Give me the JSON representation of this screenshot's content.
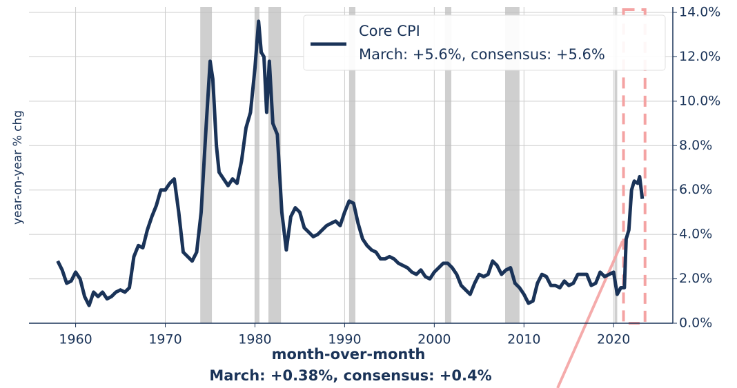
{
  "chart_data": {
    "type": "line",
    "ylabel": "year-on-year % chg",
    "xlabel": "month-over-month",
    "annotation": "March:  +0.38%, consensus: +0.4%",
    "legend_note": "March:  +5.6%, consensus: +5.6%",
    "grid": true,
    "legend": "upper right",
    "xlim": [
      1954.8,
      2026.6
    ],
    "ylim": [
      0,
      14
    ],
    "xticks": [
      1960,
      1970,
      1980,
      1990,
      2000,
      2010,
      2020
    ],
    "yticks": [
      {
        "value": 0,
        "label": "0.0%"
      },
      {
        "value": 2,
        "label": "2.0%"
      },
      {
        "value": 4,
        "label": "4.0%"
      },
      {
        "value": 6,
        "label": "6.0%"
      },
      {
        "value": 8,
        "label": "8.0%"
      },
      {
        "value": 10,
        "label": "10.0%"
      },
      {
        "value": 12,
        "label": "12.0%"
      },
      {
        "value": 14,
        "label": "14.0%"
      }
    ],
    "recession_color": "#bbbbbb",
    "recessions": [
      [
        1973.9,
        1975.2
      ],
      [
        1980.0,
        1980.5
      ],
      [
        1981.5,
        1982.9
      ],
      [
        1990.5,
        1991.2
      ],
      [
        2001.2,
        2001.9
      ],
      [
        2007.9,
        2009.5
      ],
      [
        2020.1,
        2020.4
      ]
    ],
    "highlight": {
      "color": "#f4a3a3",
      "xrange": [
        2021.1,
        2023.5
      ]
    },
    "x": [
      1958.0,
      1958.5,
      1959,
      1959.5,
      1960,
      1960.5,
      1961,
      1961.5,
      1962,
      1962.5,
      1963,
      1963.5,
      1964,
      1964.5,
      1965,
      1965.5,
      1966,
      1966.5,
      1967,
      1967.5,
      1968,
      1968.5,
      1969,
      1969.5,
      1970,
      1970.5,
      1971,
      1971.5,
      1972,
      1972.5,
      1973,
      1973.5,
      1974,
      1974.5,
      1975,
      1975.3,
      1975.7,
      1976,
      1976.5,
      1977,
      1977.5,
      1978,
      1978.5,
      1979,
      1979.5,
      1980,
      1980.4,
      1980.7,
      1981,
      1981.3,
      1981.6,
      1982,
      1982.5,
      1983,
      1983.5,
      1984,
      1984.5,
      1985,
      1985.5,
      1986,
      1986.5,
      1987,
      1987.5,
      1988,
      1988.5,
      1989,
      1989.5,
      1990,
      1990.5,
      1991,
      1991.5,
      1992,
      1992.5,
      1993,
      1993.5,
      1994,
      1994.5,
      1995,
      1995.5,
      1996,
      1996.5,
      1997,
      1997.5,
      1998,
      1998.5,
      1999,
      1999.5,
      2000,
      2000.5,
      2001,
      2001.5,
      2002,
      2002.5,
      2003,
      2003.5,
      2004,
      2004.5,
      2005,
      2005.5,
      2006,
      2006.5,
      2007,
      2007.5,
      2008,
      2008.5,
      2009,
      2009.5,
      2010,
      2010.5,
      2011,
      2011.5,
      2012,
      2012.5,
      2013,
      2013.5,
      2014,
      2014.5,
      2015,
      2015.5,
      2016,
      2016.5,
      2017,
      2017.5,
      2018,
      2018.5,
      2019,
      2019.5,
      2020,
      2020.4,
      2020.8,
      2021.2,
      2021.4,
      2021.7,
      2022,
      2022.3,
      2022.7,
      2022.9,
      2023.2
    ],
    "series": [
      {
        "name": "Core CPI",
        "color": "#1a3358",
        "values": [
          2.8,
          2.4,
          1.8,
          1.9,
          2.3,
          2.0,
          1.2,
          0.8,
          1.4,
          1.2,
          1.4,
          1.1,
          1.2,
          1.4,
          1.5,
          1.4,
          1.6,
          3.0,
          3.5,
          3.4,
          4.2,
          4.8,
          5.3,
          6.0,
          6.0,
          6.3,
          6.5,
          5.0,
          3.2,
          3.0,
          2.8,
          3.2,
          5.0,
          8.5,
          11.8,
          11.0,
          8.0,
          6.8,
          6.5,
          6.2,
          6.5,
          6.3,
          7.3,
          8.8,
          9.5,
          11.5,
          13.6,
          12.2,
          12.0,
          9.5,
          11.8,
          9.0,
          8.5,
          5.0,
          3.3,
          4.8,
          5.2,
          5.0,
          4.3,
          4.1,
          3.9,
          4.0,
          4.2,
          4.4,
          4.5,
          4.6,
          4.4,
          5.0,
          5.5,
          5.4,
          4.5,
          3.8,
          3.5,
          3.3,
          3.2,
          2.9,
          2.9,
          3.0,
          2.9,
          2.7,
          2.6,
          2.5,
          2.3,
          2.2,
          2.4,
          2.1,
          2.0,
          2.3,
          2.5,
          2.7,
          2.7,
          2.5,
          2.2,
          1.7,
          1.5,
          1.3,
          1.8,
          2.2,
          2.1,
          2.2,
          2.8,
          2.6,
          2.2,
          2.4,
          2.5,
          1.8,
          1.6,
          1.3,
          0.9,
          1.0,
          1.8,
          2.2,
          2.1,
          1.7,
          1.7,
          1.6,
          1.9,
          1.7,
          1.8,
          2.2,
          2.2,
          2.2,
          1.7,
          1.8,
          2.3,
          2.1,
          2.2,
          2.3,
          1.3,
          1.6,
          1.6,
          3.8,
          4.2,
          6.0,
          6.4,
          6.3,
          6.6,
          5.6
        ]
      }
    ]
  }
}
